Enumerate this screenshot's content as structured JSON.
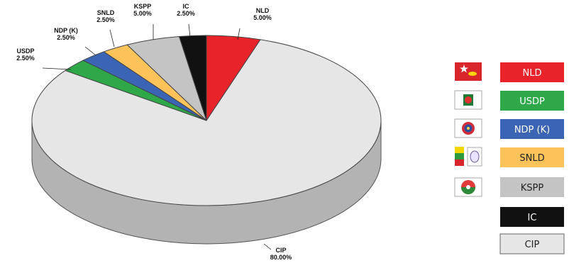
{
  "chart_data": {
    "type": "pie",
    "title": "",
    "series": [
      {
        "name": "NLD",
        "value": 5.0,
        "display": "5.00%",
        "color": "#e8232a",
        "text_color": "#ffffff"
      },
      {
        "name": "CIP",
        "value": 80.0,
        "display": "80.00%",
        "color": "#e6e6e6",
        "text_color": "#222222"
      },
      {
        "name": "USDP",
        "value": 2.5,
        "display": "2.50%",
        "color": "#2fa84a",
        "text_color": "#ffffff"
      },
      {
        "name": "NDP (K)",
        "value": 2.5,
        "display": "2.50%",
        "color": "#3b64b4",
        "text_color": "#ffffff"
      },
      {
        "name": "SNLD",
        "value": 2.5,
        "display": "2.50%",
        "color": "#fbc35a",
        "text_color": "#222222"
      },
      {
        "name": "KSPP",
        "value": 5.0,
        "display": "5.00%",
        "color": "#c4c4c4",
        "text_color": "#222222"
      },
      {
        "name": "IC",
        "value": 2.5,
        "display": "2.50%",
        "color": "#111111",
        "text_color": "#ffffff"
      }
    ],
    "legend": {
      "placement": "right",
      "entries": [
        {
          "label": "NLD",
          "color": "#e8232a",
          "text_color": "#ffffff",
          "icon": "nld-flag-icon"
        },
        {
          "label": "USDP",
          "color": "#2fa84a",
          "text_color": "#ffffff",
          "icon": "usdp-emblem-icon"
        },
        {
          "label": "NDP (K)",
          "color": "#3b64b4",
          "text_color": "#ffffff",
          "icon": "ndpk-emblem-icon"
        },
        {
          "label": "SNLD",
          "color": "#fbc35a",
          "text_color": "#222222",
          "icon": "snld-flag-icon"
        },
        {
          "label": "KSPP",
          "color": "#c4c4c4",
          "text_color": "#222222",
          "icon": "kspp-emblem-icon"
        },
        {
          "label": "IC",
          "color": "#111111",
          "text_color": "#ffffff",
          "icon": ""
        },
        {
          "label": "CIP",
          "color": "#e6e6e6",
          "text_color": "#222222",
          "icon": ""
        }
      ]
    }
  }
}
